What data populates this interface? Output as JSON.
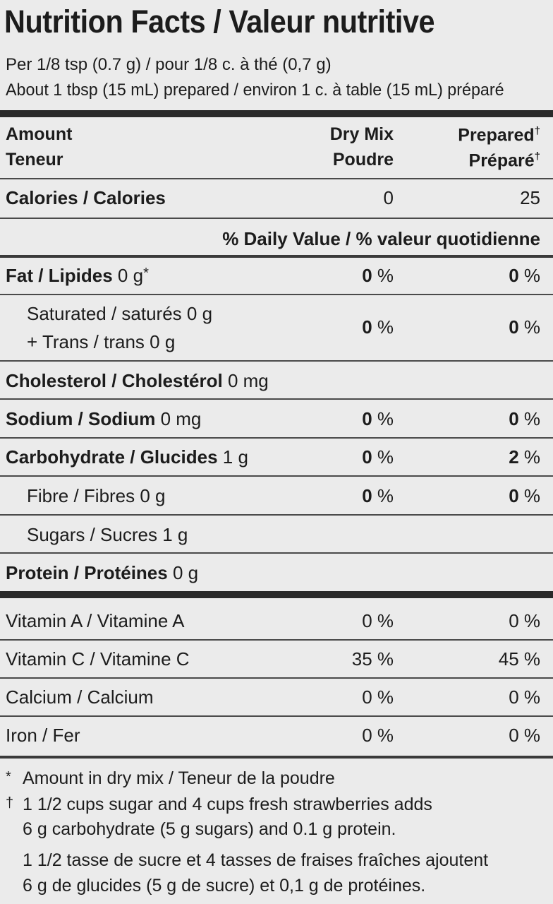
{
  "title": "Nutrition Facts / Valeur nutritive",
  "serving_line_1": "Per 1/8 tsp (0.7 g) / pour 1/8 c. à thé (0,7 g)",
  "serving_line_2": "About 1 tbsp (15 mL) prepared / environ 1 c. à table (15 mL) préparé",
  "header": {
    "amount_en": "Amount",
    "amount_fr": "Teneur",
    "col1_en": "Dry Mix",
    "col1_fr": "Poudre",
    "col2_en": "Prepared",
    "col2_fr": "Préparé",
    "dagger": "†"
  },
  "calories": {
    "label": "Calories / Calories",
    "dry": "0",
    "prepared": "25"
  },
  "daily_value_heading": "% Daily Value / % valeur quotidienne",
  "fat": {
    "label": "Fat / Lipides",
    "amount": "0 g",
    "mark": "*",
    "dry": "0",
    "prepared": "0",
    "unit": " %"
  },
  "saturated": {
    "line1": "Saturated / saturés 0 g",
    "line2": "+ Trans / trans 0 g",
    "dry": "0",
    "prepared": "0",
    "unit": " %"
  },
  "cholesterol": {
    "label": "Cholesterol / Cholestérol",
    "amount": "0 mg"
  },
  "sodium": {
    "label": "Sodium / Sodium",
    "amount": "0 mg",
    "dry": "0",
    "prepared": "0",
    "unit": " %"
  },
  "carbohydrate": {
    "label": "Carbohydrate / Glucides",
    "amount": "1 g",
    "dry": "0",
    "prepared": "2",
    "unit": " %"
  },
  "fibre": {
    "label": "Fibre / Fibres 0 g",
    "dry": "0",
    "prepared": "0",
    "unit": " %"
  },
  "sugars": {
    "label": "Sugars / Sucres 1 g"
  },
  "protein": {
    "label": "Protein / Protéines",
    "amount": "0 g"
  },
  "vitamins": [
    {
      "label": "Vitamin A / Vitamine A",
      "dry": "0 %",
      "prepared": "0 %"
    },
    {
      "label": "Vitamin C / Vitamine C",
      "dry": "35 %",
      "prepared": "45 %"
    },
    {
      "label": "Calcium / Calcium",
      "dry": "0 %",
      "prepared": "0 %"
    },
    {
      "label": "Iron / Fer",
      "dry": "0 %",
      "prepared": "0 %"
    }
  ],
  "footnotes": {
    "star_mark": "*",
    "star_text": "Amount in dry mix / Teneur de la poudre",
    "dagger_mark": "†",
    "dagger_line1": "1 1/2 cups sugar and 4 cups fresh strawberries adds",
    "dagger_line2": "6 g carbohydrate (5 g sugars) and 0.1 g protein.",
    "dagger_line3": "1 1/2 tasse de sucre et 4 tasses de fraises fraîches ajoutent",
    "dagger_line4": "6 g de glucides (5 g de sucre) et 0,1 g de protéines."
  }
}
